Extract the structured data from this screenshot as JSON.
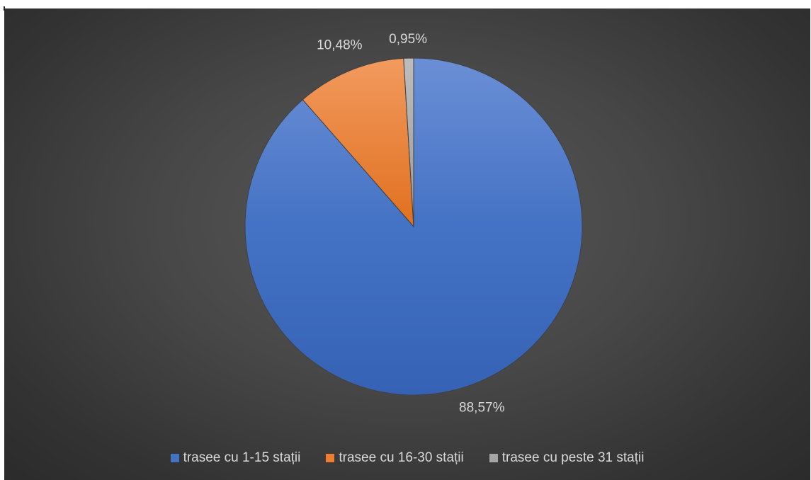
{
  "chart_data": {
    "type": "pie",
    "title": "",
    "categories": [
      "trasee cu 1-15 stații",
      "trasee cu 16-30 stații",
      "trasee cu peste 31 stații"
    ],
    "values": [
      88.57,
      10.48,
      0.95
    ],
    "data_labels": [
      "88,57%",
      "10,48%",
      "0,95%"
    ],
    "colors": [
      "#4472c4",
      "#ed7d31",
      "#a5a5a5"
    ],
    "start_angle_deg": 0,
    "direction": "clockwise",
    "legend_placement": "bottom"
  }
}
